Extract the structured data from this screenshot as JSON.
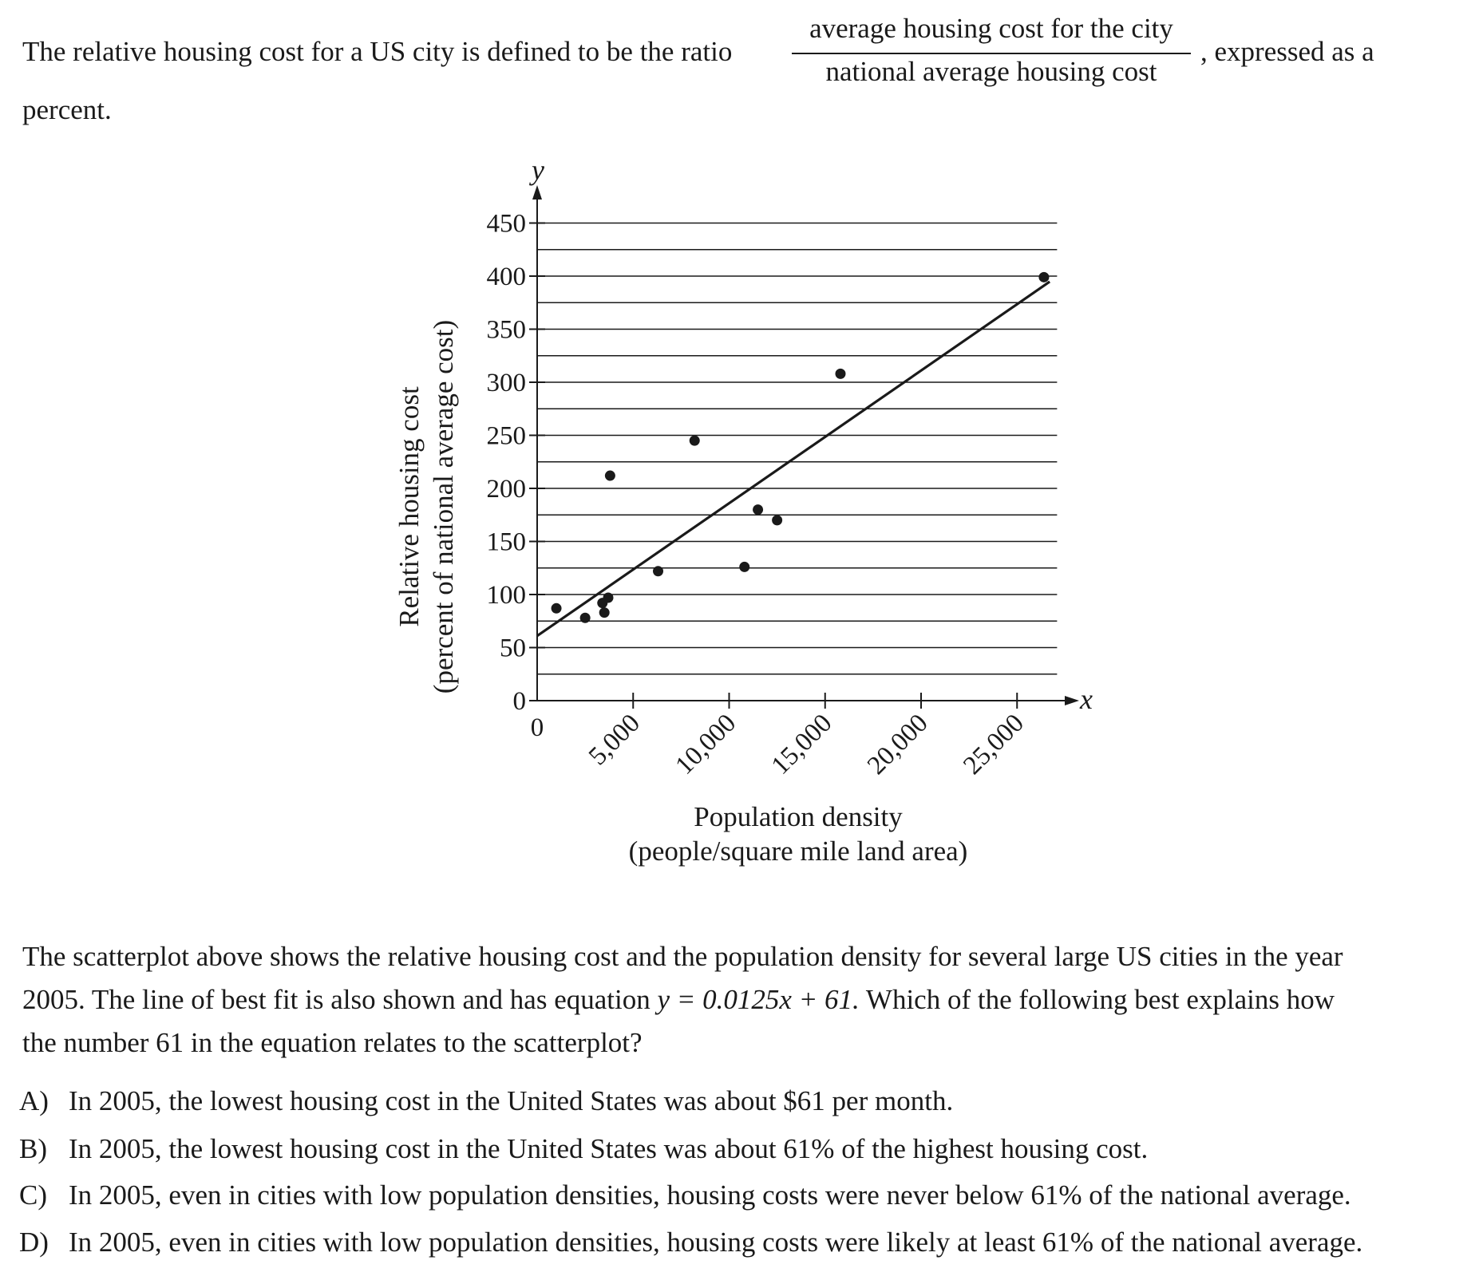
{
  "intro": {
    "line1": "The relative housing cost for a US city is defined to be the ratio",
    "fraction_numerator": "average housing cost for the city",
    "fraction_denominator": "national average housing cost",
    "suffix": ", expressed as a",
    "line2": "percent."
  },
  "chart_data": {
    "type": "scatter",
    "title": "",
    "xlabel_line1": "Population density",
    "xlabel_line2": "(people/square mile land area)",
    "ylabel_line1": "Relative housing cost",
    "ylabel_line2": "(percent of national average cost)",
    "x_axis_var": "x",
    "y_axis_var": "y",
    "x_origin_label": "0",
    "xlim": [
      0,
      27500
    ],
    "ylim": [
      0,
      450
    ],
    "x_ticks": [
      0,
      5000,
      10000,
      15000,
      20000,
      25000
    ],
    "x_tick_labels": [
      "5,000",
      "10,000",
      "15,000",
      "20,000",
      "25,000"
    ],
    "y_ticks": [
      0,
      50,
      100,
      150,
      200,
      250,
      300,
      350,
      400,
      450
    ],
    "y_tick_labels": [
      "0",
      "50",
      "100",
      "150",
      "200",
      "250",
      "300",
      "350",
      "400",
      "450"
    ],
    "grid": "horizontal",
    "grid_step": 25,
    "points": [
      {
        "x": 1000,
        "y": 87
      },
      {
        "x": 2500,
        "y": 78
      },
      {
        "x": 3400,
        "y": 92
      },
      {
        "x": 3500,
        "y": 83
      },
      {
        "x": 3700,
        "y": 97
      },
      {
        "x": 3800,
        "y": 212
      },
      {
        "x": 6300,
        "y": 122
      },
      {
        "x": 8200,
        "y": 245
      },
      {
        "x": 10800,
        "y": 126
      },
      {
        "x": 11500,
        "y": 180
      },
      {
        "x": 12500,
        "y": 170
      },
      {
        "x": 15800,
        "y": 308
      },
      {
        "x": 26400,
        "y": 399
      }
    ],
    "fit_line": {
      "slope": 0.0125,
      "intercept": 61,
      "x_start": 0,
      "x_end": 26700
    }
  },
  "question": {
    "line1": "The scatterplot above shows the relative housing cost and the population density for several large US cities in the year",
    "line2_prefix": "2005.  The line of best fit is also shown and has equation ",
    "line2_equation": "y = 0.0125x + 61.",
    "line2_suffix": " Which of the following best explains how",
    "line3": "the number 61 in the equation relates to the scatterplot?"
  },
  "choices": [
    {
      "letter": "A)",
      "text": "In 2005, the lowest housing cost in the United States was about $61 per month."
    },
    {
      "letter": "B)",
      "text": "In 2005, the lowest housing cost in the United States was about 61% of the highest housing cost."
    },
    {
      "letter": "C)",
      "text": "In 2005, even in cities with low population densities, housing costs were never below 61% of the national average."
    },
    {
      "letter": "D)",
      "text": "In 2005, even in cities with low population densities, housing costs were likely at least 61% of the national average."
    }
  ]
}
